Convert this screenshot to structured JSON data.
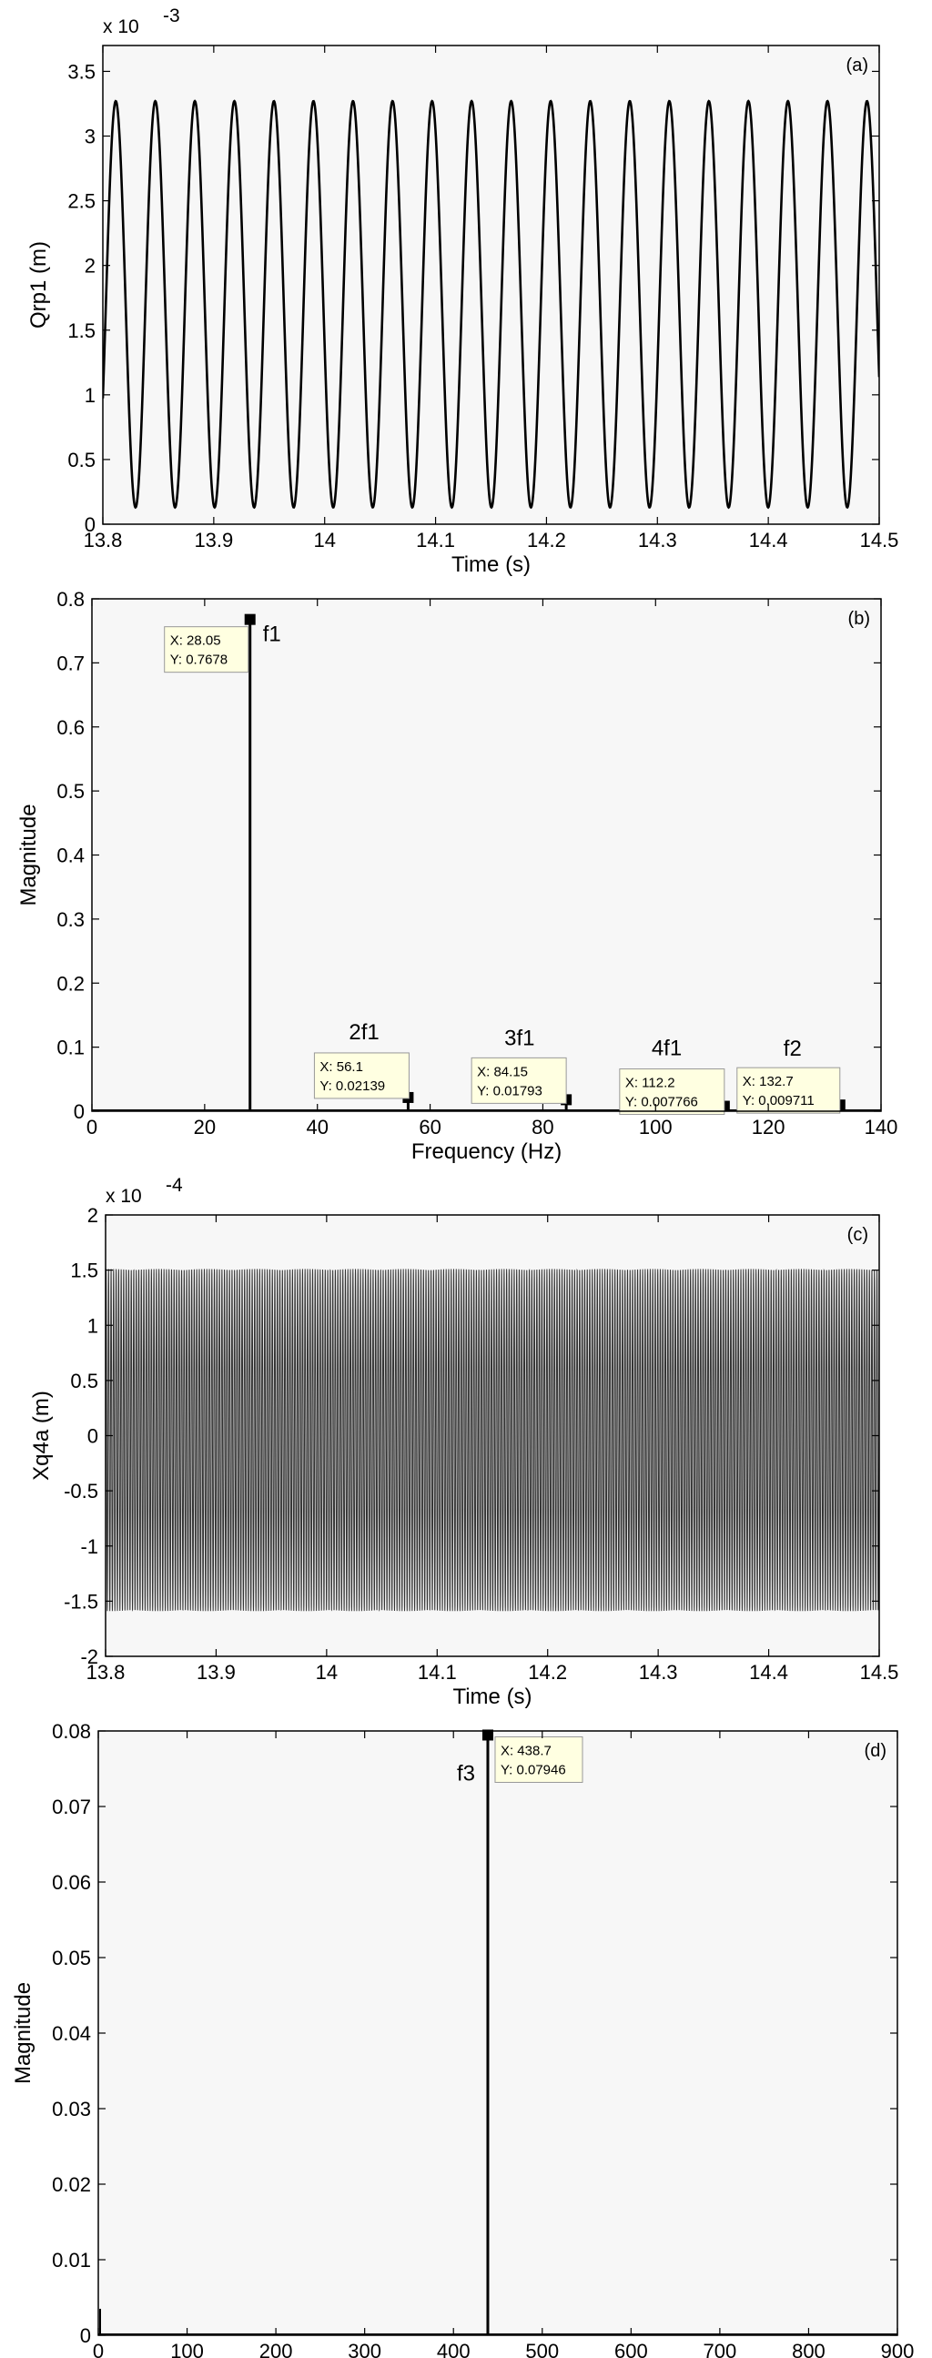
{
  "chart_data": [
    {
      "id": "a",
      "type": "line",
      "panel_label": "(a)",
      "xlabel": "Time (s)",
      "ylabel": "Qrp1 (m)",
      "exponent": {
        "base": "x 10",
        "power": "-3"
      },
      "xlim": [
        13.8,
        14.5
      ],
      "ylim": [
        0,
        3.7
      ],
      "xticks": [
        13.8,
        13.9,
        14.0,
        14.1,
        14.2,
        14.3,
        14.4,
        14.5
      ],
      "xtick_labels": [
        "13.8",
        "13.9",
        "14",
        "14.1",
        "14.2",
        "14.3",
        "14.4",
        "14.5"
      ],
      "yticks": [
        0,
        0.5,
        1,
        1.5,
        2,
        2.5,
        3,
        3.5
      ],
      "ytick_labels": [
        "0",
        "0.5",
        "1",
        "1.5",
        "2",
        "2.5",
        "3",
        "3.5"
      ],
      "signal": {
        "kind": "sine",
        "frequency": 28.05,
        "mean": 1.7,
        "amplitude": 1.57,
        "phase_deg": -60
      },
      "color": "#000000"
    },
    {
      "id": "b",
      "type": "line",
      "panel_label": "(b)",
      "xlabel": "Frequency (Hz)",
      "ylabel": "Magnitude",
      "xlim": [
        0,
        140
      ],
      "ylim": [
        0,
        0.8
      ],
      "xticks": [
        0,
        20,
        40,
        60,
        80,
        100,
        120,
        140
      ],
      "xtick_labels": [
        "0",
        "20",
        "40",
        "60",
        "80",
        "100",
        "120",
        "140"
      ],
      "yticks": [
        0,
        0.1,
        0.2,
        0.3,
        0.4,
        0.5,
        0.6,
        0.7,
        0.8
      ],
      "ytick_labels": [
        "0",
        "0.1",
        "0.2",
        "0.3",
        "0.4",
        "0.5",
        "0.6",
        "0.7",
        "0.8"
      ],
      "peaks": [
        {
          "name": "f1",
          "x": 28.05,
          "y": 0.7678,
          "tip_x": "X: 28.05",
          "tip_y": "Y: 0.7678"
        },
        {
          "name": "2f1",
          "x": 56.1,
          "y": 0.02139,
          "tip_x": "X: 56.1",
          "tip_y": "Y: 0.02139"
        },
        {
          "name": "3f1",
          "x": 84.15,
          "y": 0.01793,
          "tip_x": "X: 84.15",
          "tip_y": "Y: 0.01793"
        },
        {
          "name": "4f1",
          "x": 112.2,
          "y": 0.007766,
          "tip_x": "X: 112.2",
          "tip_y": "Y: 0.007766"
        },
        {
          "name": "f2",
          "x": 132.7,
          "y": 0.009711,
          "tip_x": "X: 132.7",
          "tip_y": "Y: 0.009711"
        }
      ],
      "color": "#000000"
    },
    {
      "id": "c",
      "type": "line",
      "panel_label": "(c)",
      "xlabel": "Time (s)",
      "ylabel": "Xq4a (m)",
      "exponent": {
        "base": "x 10",
        "power": "-4"
      },
      "xlim": [
        13.8,
        14.5
      ],
      "ylim": [
        -2,
        2
      ],
      "xticks": [
        13.8,
        13.9,
        14.0,
        14.1,
        14.2,
        14.3,
        14.4,
        14.5
      ],
      "xtick_labels": [
        "13.8",
        "13.9",
        "14",
        "14.1",
        "14.2",
        "14.3",
        "14.4",
        "14.5"
      ],
      "yticks": [
        -2,
        -1.5,
        -1,
        -0.5,
        0,
        0.5,
        1,
        1.5,
        2
      ],
      "ytick_labels": [
        "-2",
        "-1.5",
        "-1",
        "-0.5",
        "0",
        "0.5",
        "1",
        "1.5",
        "2"
      ],
      "signal": {
        "kind": "sine",
        "frequency": 438.7,
        "mean": -0.04,
        "amplitude": 1.55,
        "phase_deg": 0
      },
      "color": "#333333"
    },
    {
      "id": "d",
      "type": "line",
      "panel_label": "(d)",
      "xlabel": "Frequency (Hz)",
      "ylabel": "Magnitude",
      "xlim": [
        0,
        900
      ],
      "ylim": [
        0,
        0.08
      ],
      "xticks": [
        0,
        100,
        200,
        300,
        400,
        500,
        600,
        700,
        800,
        900
      ],
      "xtick_labels": [
        "0",
        "100",
        "200",
        "300",
        "400",
        "500",
        "600",
        "700",
        "800",
        "900"
      ],
      "yticks": [
        0,
        0.01,
        0.02,
        0.03,
        0.04,
        0.05,
        0.06,
        0.07,
        0.08
      ],
      "ytick_labels": [
        "0",
        "0.01",
        "0.02",
        "0.03",
        "0.04",
        "0.05",
        "0.06",
        "0.07",
        "0.08"
      ],
      "peaks": [
        {
          "name": "f3",
          "x": 438.7,
          "y": 0.07946,
          "tip_x": "X: 438.7",
          "tip_y": "Y: 0.07946"
        }
      ],
      "color": "#000000"
    }
  ]
}
